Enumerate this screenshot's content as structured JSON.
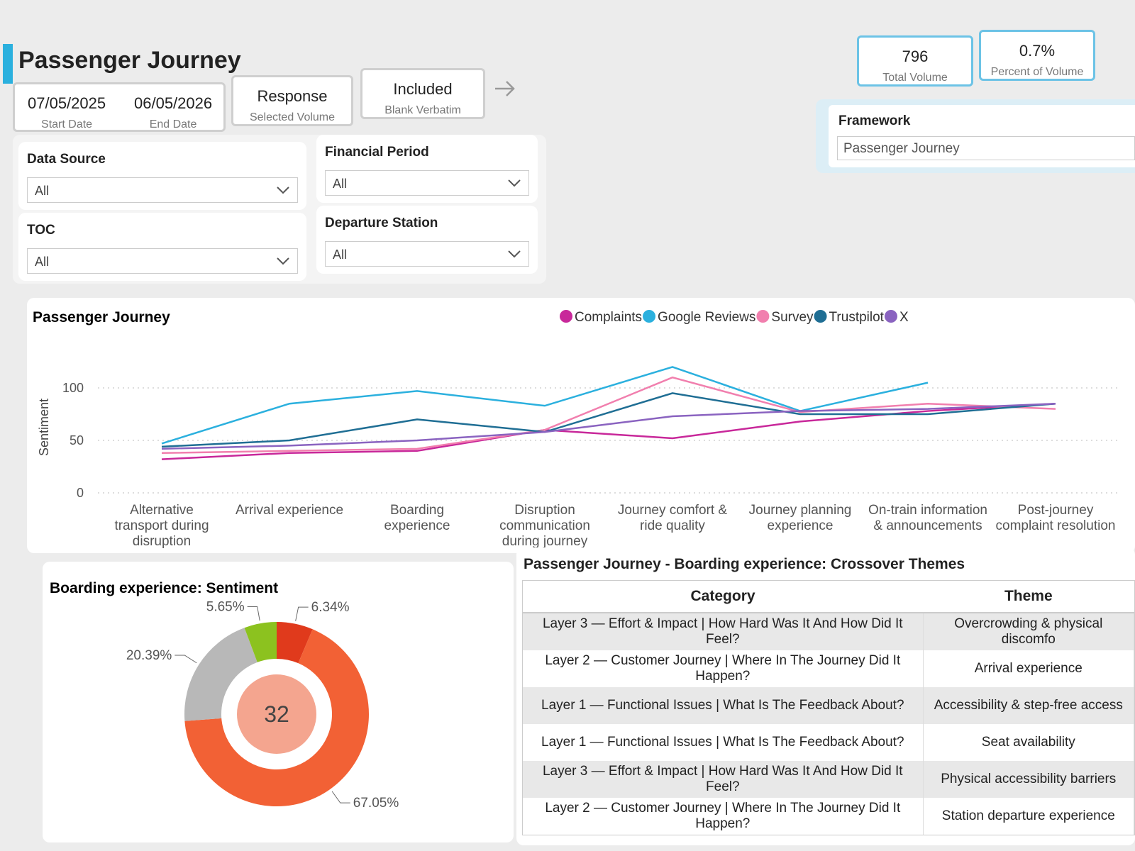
{
  "header": {
    "title": "Passenger Journey"
  },
  "date_range": {
    "start": "07/05/2025",
    "start_label": "Start Date",
    "end": "06/05/2026",
    "end_label": "End Date"
  },
  "toggles": [
    {
      "value": "Response",
      "label": "Selected Volume"
    },
    {
      "value": "Included",
      "label": "Blank Verbatim"
    }
  ],
  "filters": [
    {
      "label": "Data Source",
      "value": "All"
    },
    {
      "label": "Financial Period",
      "value": "All"
    },
    {
      "label": "TOC",
      "value": "All"
    },
    {
      "label": "Departure Station",
      "value": "All"
    }
  ],
  "kpis": [
    {
      "value": 796,
      "label": "Total Volume"
    },
    {
      "value": "0.7%",
      "label": "Percent of Volume"
    }
  ],
  "framework": {
    "label": "Framework",
    "value": "Passenger Journey"
  },
  "chart_data": [
    {
      "type": "line",
      "title": "Passenger Journey",
      "y_label": "Sentiment",
      "categories": [
        "Alternative transport during disruption",
        "Arrival experience",
        "Boarding experience",
        "Disruption communication during journey",
        "Journey comfort & ride quality",
        "Journey planning experience",
        "On-train information & announcements",
        "Post-journey complaint resolution"
      ],
      "series": [
        {
          "name": "Complaints",
          "color": "#c8289a",
          "values": [
            32,
            38,
            40,
            60,
            52,
            68,
            78,
            85
          ]
        },
        {
          "name": "Google Reviews",
          "color": "#2bb0de",
          "values": [
            47,
            85,
            97,
            83,
            120,
            78,
            105,
            null
          ]
        },
        {
          "name": "Survey",
          "color": "#f17fae",
          "values": [
            38,
            40,
            42,
            60,
            110,
            77,
            85,
            80
          ]
        },
        {
          "name": "Trustpilot",
          "color": "#1f6e94",
          "values": [
            44,
            50,
            70,
            58,
            95,
            75,
            75,
            85
          ]
        },
        {
          "name": "X",
          "color": "#8a63c0",
          "values": [
            42,
            45,
            50,
            58,
            73,
            78,
            80,
            85
          ]
        }
      ],
      "ylim": [
        0,
        125
      ],
      "yticks": [
        0,
        50,
        100
      ],
      "grid": true
    },
    {
      "type": "pie",
      "title": "Boarding experience: Sentiment",
      "center_value": 32,
      "values": [
        6.34,
        67.05,
        20.39,
        5.65
      ],
      "value_labels": [
        "6.34%",
        "67.05%",
        "20.39%",
        "5.65%"
      ],
      "colors": [
        "#e03a1c",
        "#f26135",
        "#b8b8b8",
        "#8cc21f"
      ]
    }
  ],
  "table": {
    "title": "Passenger Journey - Boarding experience: Crossover Themes",
    "columns": [
      "Category",
      "Theme"
    ],
    "rows": [
      [
        "Layer 3 — Effort & Impact | How Hard Was It And How Did It Feel?",
        "Overcrowding & physical discomfo"
      ],
      [
        "Layer 2 — Customer Journey | Where In The Journey Did It Happen?",
        "Arrival experience"
      ],
      [
        "Layer 1 — Functional Issues | What Is The Feedback About?",
        "Accessibility & step-free access"
      ],
      [
        "Layer 1 — Functional Issues | What Is The Feedback About?",
        "Seat availability"
      ],
      [
        "Layer 3 — Effort & Impact | How Hard Was It And How Did It Feel?",
        "Physical accessibility barriers"
      ],
      [
        "Layer 2 — Customer Journey | Where In The Journey Did It Happen?",
        "Station departure experience"
      ]
    ]
  }
}
